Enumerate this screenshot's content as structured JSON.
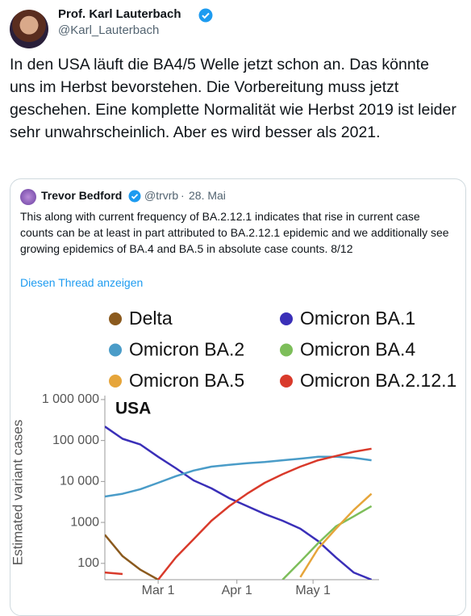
{
  "tweet": {
    "name": "Prof. Karl Lauterbach",
    "handle": "@Karl_Lauterbach",
    "text": "In den USA läuft die BA4/5 Welle jetzt schon an. Das könnte uns im Herbst bevorstehen. Die Vorbereitung muss jetzt geschehen. Eine komplette Normalität wie Herbst 2019 ist leider sehr unwahrscheinlich. Aber es wird besser als 2021."
  },
  "quote": {
    "name": "Trevor Bedford",
    "handle": "@trvrb",
    "date": "28. Mai",
    "text": "This along with current frequency of BA.2.12.1 indicates that rise in current case counts can be at least in part attributed to BA.2.12.1 epidemic and we additionally see growing epidemics of BA.4 and BA.5 in absolute case counts. 8/12",
    "link": "Diesen Thread anzeigen"
  },
  "chart_data": {
    "type": "line",
    "title": "USA",
    "y_label": "Estimated variant cases",
    "log_y": true,
    "x": [
      "Feb 8",
      "Feb 15",
      "Feb 22",
      "Mar 1",
      "Mar 8",
      "Mar 15",
      "Mar 22",
      "Mar 29",
      "Apr 5",
      "Apr 12",
      "Apr 19",
      "Apr 26",
      "May 3",
      "May 10",
      "May 17",
      "May 24"
    ],
    "xlim": [
      "Feb 8",
      "May 27"
    ],
    "xticks": [
      "Mar 1",
      "Apr 1",
      "May 1"
    ],
    "ylim": [
      40,
      1250000
    ],
    "yticks": [
      100,
      1000,
      {
        "value": 10000,
        "label": "10 000"
      },
      {
        "value": 100000,
        "label": "100 000"
      },
      {
        "value": 1000000,
        "label": "1 000 000"
      }
    ],
    "series": [
      {
        "name": "Delta",
        "color": "#8b5a1e",
        "values": [
          500,
          150,
          70,
          40,
          null,
          null,
          null,
          null,
          null,
          null,
          null,
          null,
          null,
          null,
          null,
          null
        ]
      },
      {
        "name": "Omicron BA.1",
        "color": "#3a2fb8",
        "values": [
          220000,
          110000,
          80000,
          40000,
          21000,
          10600,
          6800,
          3900,
          2500,
          1600,
          1100,
          700,
          350,
          140,
          60,
          40
        ]
      },
      {
        "name": "Omicron BA.2",
        "color": "#4a9cc8",
        "values": [
          4300,
          5000,
          6500,
          9300,
          13500,
          18500,
          23000,
          25500,
          28000,
          30000,
          33000,
          36000,
          40000,
          40000,
          38000,
          33000
        ]
      },
      {
        "name": "Omicron BA.4",
        "color": "#7dbe5a",
        "values": [
          null,
          null,
          null,
          null,
          null,
          null,
          null,
          null,
          null,
          null,
          40,
          110,
          310,
          800,
          1400,
          2500
        ]
      },
      {
        "name": "Omicron BA.5",
        "color": "#e6a53a",
        "values": [
          null,
          null,
          null,
          null,
          null,
          null,
          null,
          null,
          null,
          null,
          null,
          46,
          230,
          700,
          2000,
          5000
        ]
      },
      {
        "name": "Omicron BA.2.12.1",
        "color": "#d93a2b",
        "values": [
          60,
          55,
          null,
          40,
          140,
          390,
          1100,
          2500,
          5000,
          9300,
          15000,
          23000,
          33000,
          42000,
          53000,
          63000
        ]
      }
    ]
  }
}
